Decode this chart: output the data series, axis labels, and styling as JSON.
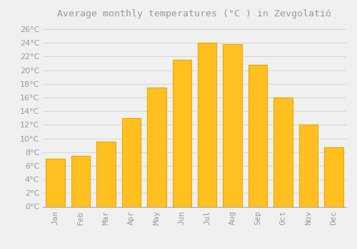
{
  "title": "Average monthly temperatures (°C ) in Zevgolatió",
  "months": [
    "Jan",
    "Feb",
    "Mar",
    "Apr",
    "May",
    "Jun",
    "Jul",
    "Aug",
    "Sep",
    "Oct",
    "Nov",
    "Dec"
  ],
  "values": [
    7.0,
    7.5,
    9.5,
    13.0,
    17.5,
    21.5,
    24.0,
    23.8,
    20.8,
    16.0,
    12.0,
    8.7
  ],
  "bar_color": "#FFC020",
  "bar_edge_color": "#E8A800",
  "background_color": "#F0F0F0",
  "grid_color": "#D8D8D8",
  "ylim": [
    0,
    27
  ],
  "ytick_step": 2,
  "title_fontsize": 9.5,
  "tick_fontsize": 8,
  "font_color": "#999999"
}
